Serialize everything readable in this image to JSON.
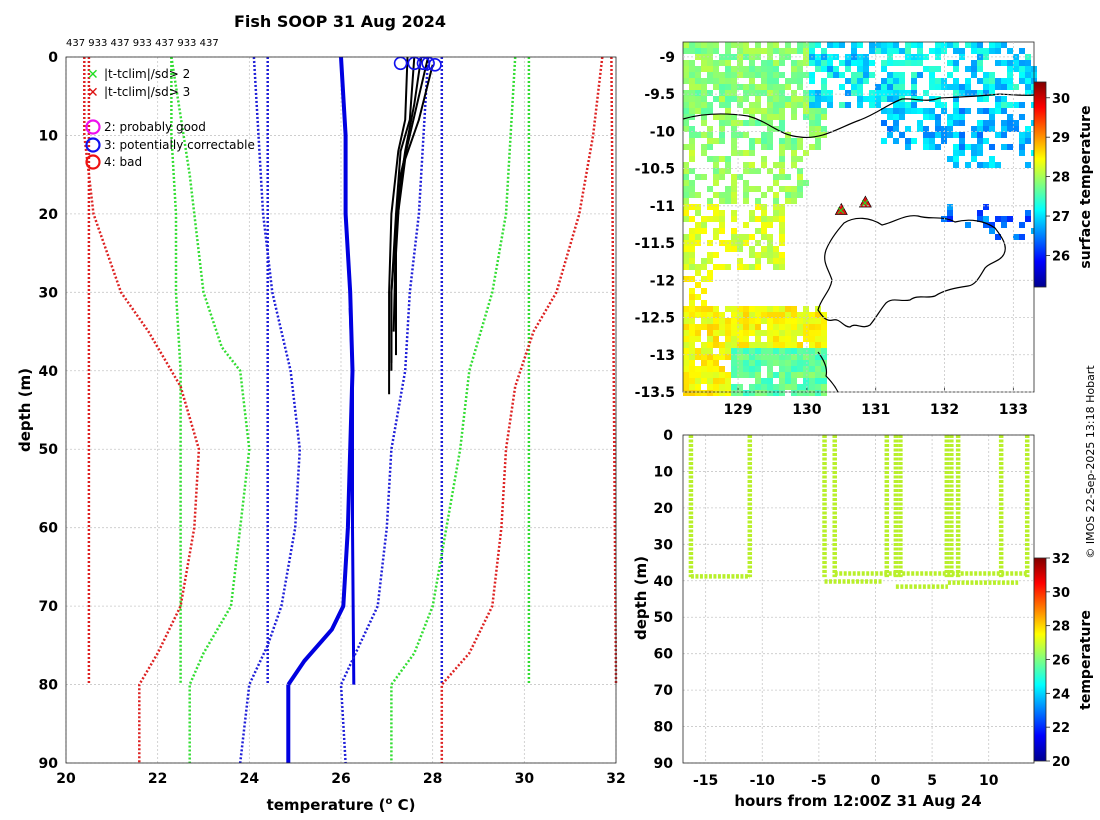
{
  "chart_data": [
    {
      "type": "line",
      "title": "Fish SOOP 31 Aug 2024",
      "top_note": "437 933 437 933 437 933 437",
      "xlabel": "temperature (",
      "xlabel_sup": "o",
      "xlabel_end": " C)",
      "ylabel": "depth (m)",
      "xlim": [
        20,
        32
      ],
      "ylim": [
        90,
        0
      ],
      "xticks": [
        20,
        22,
        24,
        26,
        28,
        30,
        32
      ],
      "yticks": [
        0,
        10,
        20,
        30,
        40,
        50,
        60,
        70,
        80,
        90
      ],
      "legend": [
        {
          "marker": "x",
          "color": "#22dd22",
          "label": "|t-tclim|/sd> 2"
        },
        {
          "marker": "x",
          "color": "#dd1111",
          "label": "|t-tclim|/sd> 3"
        },
        {
          "marker": "o",
          "color": "#ee11ee",
          "label": "2: probably good"
        },
        {
          "marker": "o",
          "color": "#1111ee",
          "label": "3: potentially correctable"
        },
        {
          "marker": "o",
          "color": "#ee1111",
          "label": "4: bad"
        }
      ],
      "series": [
        {
          "name": "clim-mean-upper",
          "color": "#0000e0",
          "style": "solid",
          "width": 4,
          "points": [
            [
              26.0,
              0
            ],
            [
              26.1,
              10
            ],
            [
              26.1,
              20
            ],
            [
              26.2,
              30
            ],
            [
              26.25,
              40
            ],
            [
              26.2,
              50
            ],
            [
              26.15,
              60
            ],
            [
              26.05,
              70
            ],
            [
              25.8,
              73
            ],
            [
              25.2,
              77
            ],
            [
              24.85,
              80
            ]
          ]
        },
        {
          "name": "clim-mean-lower",
          "color": "#0000e0",
          "style": "solid",
          "width": 4,
          "points": [
            [
              24.85,
              80
            ],
            [
              24.85,
              90
            ]
          ]
        },
        {
          "name": "clim-mean-alt",
          "color": "#0000e0",
          "style": "solid",
          "width": 3,
          "points": [
            [
              26.2,
              32
            ],
            [
              26.25,
              40
            ],
            [
              26.25,
              60
            ],
            [
              26.28,
              80
            ]
          ]
        },
        {
          "name": "sd2-left",
          "color": "#1e1ed8",
          "style": "dotted",
          "width": 2.5,
          "points": [
            [
              24.1,
              0
            ],
            [
              24.2,
              10
            ],
            [
              24.3,
              20
            ],
            [
              24.5,
              30
            ],
            [
              24.9,
              40
            ],
            [
              25.1,
              50
            ],
            [
              25.0,
              60
            ],
            [
              24.7,
              70
            ],
            [
              24.4,
              75
            ],
            [
              24.0,
              80
            ],
            [
              23.8,
              90
            ]
          ]
        },
        {
          "name": "sd2-right",
          "color": "#1e1ed8",
          "style": "dotted",
          "width": 2.5,
          "points": [
            [
              27.9,
              0
            ],
            [
              27.8,
              10
            ],
            [
              27.7,
              20
            ],
            [
              27.5,
              30
            ],
            [
              27.4,
              40
            ],
            [
              27.1,
              50
            ],
            [
              27.0,
              60
            ],
            [
              26.8,
              70
            ],
            [
              26.4,
              75
            ],
            [
              26.0,
              80
            ],
            [
              26.1,
              90
            ]
          ]
        },
        {
          "name": "sd2-left-straight",
          "color": "#1e1ed8",
          "style": "dotted",
          "width": 2.5,
          "points": [
            [
              24.4,
              0
            ],
            [
              24.4,
              80
            ]
          ]
        },
        {
          "name": "sd2-right-straight",
          "color": "#1e1ed8",
          "style": "dotted",
          "width": 2.5,
          "points": [
            [
              28.2,
              0
            ],
            [
              28.2,
              80
            ]
          ]
        },
        {
          "name": "sd3-left",
          "color": "#33dd33",
          "style": "dotted",
          "width": 2.5,
          "points": [
            [
              22.3,
              0
            ],
            [
              22.3,
              10
            ],
            [
              22.4,
              20
            ],
            [
              22.4,
              30
            ],
            [
              22.5,
              40
            ],
            [
              22.5,
              50
            ],
            [
              22.5,
              60
            ],
            [
              22.5,
              70
            ],
            [
              22.5,
              80
            ]
          ]
        },
        {
          "name": "sd3-left-b",
          "color": "#33dd33",
          "style": "dotted",
          "width": 2.5,
          "points": [
            [
              22.3,
              0
            ],
            [
              22.7,
              15
            ],
            [
              23.0,
              30
            ],
            [
              23.4,
              37
            ],
            [
              23.8,
              40
            ],
            [
              24.0,
              50
            ],
            [
              23.8,
              60
            ],
            [
              23.6,
              70
            ],
            [
              23.0,
              76
            ],
            [
              22.7,
              80
            ],
            [
              22.7,
              90
            ]
          ]
        },
        {
          "name": "sd3-right",
          "color": "#33dd33",
          "style": "dotted",
          "width": 2.5,
          "points": [
            [
              29.8,
              0
            ],
            [
              29.7,
              10
            ],
            [
              29.6,
              20
            ],
            [
              29.3,
              30
            ],
            [
              28.8,
              40
            ],
            [
              28.6,
              50
            ],
            [
              28.3,
              60
            ],
            [
              28.0,
              70
            ],
            [
              27.6,
              76
            ],
            [
              27.1,
              80
            ],
            [
              27.1,
              90
            ]
          ]
        },
        {
          "name": "sd3-right-straight",
          "color": "#33dd33",
          "style": "dotted",
          "width": 2.5,
          "points": [
            [
              30.1,
              0
            ],
            [
              30.1,
              80
            ]
          ]
        },
        {
          "name": "sd4-left",
          "color": "#dd2222",
          "style": "dotted",
          "width": 2.5,
          "points": [
            [
              20.4,
              0
            ],
            [
              20.4,
              10
            ],
            [
              20.6,
              20
            ],
            [
              21.2,
              30
            ],
            [
              21.8,
              35
            ],
            [
              22.5,
              42
            ],
            [
              22.9,
              50
            ],
            [
              22.8,
              60
            ],
            [
              22.5,
              70
            ],
            [
              22.0,
              76
            ],
            [
              21.6,
              80
            ],
            [
              21.6,
              90
            ]
          ]
        },
        {
          "name": "sd4-left-straight",
          "color": "#dd2222",
          "style": "dotted",
          "width": 2.5,
          "points": [
            [
              20.5,
              0
            ],
            [
              20.5,
              80
            ]
          ]
        },
        {
          "name": "sd4-right",
          "color": "#dd2222",
          "style": "dotted",
          "width": 2.5,
          "points": [
            [
              31.7,
              0
            ],
            [
              31.5,
              10
            ],
            [
              31.2,
              20
            ],
            [
              30.7,
              30
            ],
            [
              30.2,
              35
            ],
            [
              29.8,
              42
            ],
            [
              29.6,
              50
            ],
            [
              29.5,
              60
            ],
            [
              29.3,
              70
            ],
            [
              28.8,
              76
            ],
            [
              28.2,
              80
            ],
            [
              28.2,
              90
            ]
          ]
        },
        {
          "name": "sd4-right-straight",
          "color": "#dd2222",
          "style": "dotted",
          "width": 2.5,
          "points": [
            [
              31.9,
              0
            ],
            [
              32.0,
              80
            ]
          ]
        },
        {
          "name": "profile-1",
          "color": "#000000",
          "style": "solid",
          "width": 2,
          "points": [
            [
              27.45,
              0
            ],
            [
              27.4,
              8
            ],
            [
              27.25,
              12
            ],
            [
              27.1,
              20
            ],
            [
              27.05,
              30
            ],
            [
              27.05,
              40
            ],
            [
              27.05,
              43
            ]
          ]
        },
        {
          "name": "profile-2",
          "color": "#000000",
          "style": "solid",
          "width": 2,
          "points": [
            [
              27.6,
              0
            ],
            [
              27.5,
              8
            ],
            [
              27.3,
              12
            ],
            [
              27.2,
              20
            ],
            [
              27.1,
              30
            ],
            [
              27.1,
              39
            ]
          ]
        },
        {
          "name": "profile-3",
          "color": "#000000",
          "style": "solid",
          "width": 2,
          "points": [
            [
              27.75,
              0
            ],
            [
              27.6,
              6
            ],
            [
              27.4,
              12
            ],
            [
              27.25,
              18
            ],
            [
              27.1,
              30
            ],
            [
              27.1,
              40
            ]
          ]
        },
        {
          "name": "profile-4",
          "color": "#000000",
          "style": "solid",
          "width": 2,
          "points": [
            [
              27.9,
              0
            ],
            [
              27.7,
              5
            ],
            [
              27.5,
              10
            ],
            [
              27.3,
              15
            ],
            [
              27.2,
              25
            ],
            [
              27.2,
              38
            ]
          ]
        },
        {
          "name": "profile-5",
          "color": "#000000",
          "style": "solid",
          "width": 2,
          "points": [
            [
              28.0,
              1
            ],
            [
              27.7,
              8
            ],
            [
              27.4,
              13
            ],
            [
              27.2,
              22
            ],
            [
              27.15,
              35
            ]
          ]
        }
      ],
      "flag_points": [
        [
          27.3,
          0.8
        ],
        [
          27.6,
          0.8
        ],
        [
          27.8,
          0.8
        ],
        [
          27.9,
          0.8
        ],
        [
          28.05,
          1.0
        ]
      ]
    },
    {
      "type": "heatmap",
      "title": "",
      "colorbar_label": "surface temperature",
      "xlim": [
        128.2,
        133.3
      ],
      "ylim": [
        -13.5,
        -8.8
      ],
      "xticks": [
        129,
        130,
        131,
        132,
        133
      ],
      "yticks": [
        -9,
        -9.5,
        -10,
        -10.5,
        -11,
        -11.5,
        -12,
        -12.5,
        -13,
        -13.5
      ],
      "clim": [
        25.2,
        30.4
      ],
      "cticks": [
        26,
        27,
        28,
        29,
        30
      ],
      "markers": [
        [
          130.5,
          -11.05
        ],
        [
          130.85,
          -10.95
        ]
      ]
    },
    {
      "type": "scatter",
      "xlabel": "hours from 12:00Z 31 Aug 24",
      "ylabel": "depth (m)",
      "colorbar_label": "temperature",
      "xlim": [
        -17,
        14
      ],
      "ylim": [
        90,
        0
      ],
      "xticks": [
        -15,
        -10,
        -5,
        0,
        5,
        10
      ],
      "yticks": [
        0,
        10,
        20,
        30,
        40,
        50,
        60,
        70,
        80,
        90
      ],
      "clim": [
        20,
        32
      ],
      "cticks": [
        20,
        22,
        24,
        26,
        28,
        30,
        32
      ],
      "segments": [
        {
          "x0": -16.3,
          "x1": -11.1,
          "depth": 38.8
        },
        {
          "x0": -4.5,
          "x1": 0.6,
          "depth": 40.2
        },
        {
          "x0": -3.6,
          "x1": 13.4,
          "depth": 38.0
        },
        {
          "x0": 1.8,
          "x1": 6.4,
          "depth": 41.6
        },
        {
          "x0": 6.4,
          "x1": 12.6,
          "depth": 40.5
        }
      ],
      "casts": [
        -16.3,
        -11.1,
        -4.5,
        -3.6,
        1.0,
        1.8,
        2.2,
        6.3,
        6.7,
        7.3,
        11.1,
        13.4
      ]
    }
  ],
  "credit": "© IMOS 22-Sep-2025 13:18 Hobart"
}
